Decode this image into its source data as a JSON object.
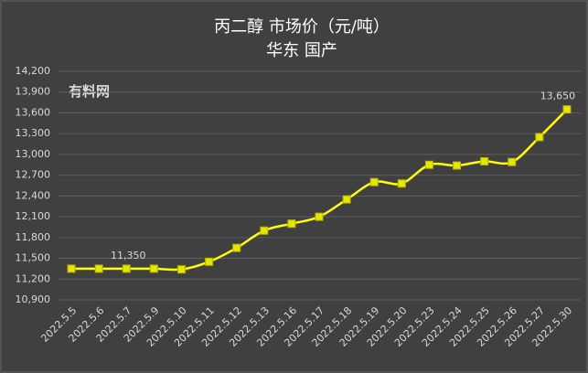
{
  "chart_data": {
    "type": "line",
    "title": "丙二醇  市场价（元/吨）",
    "subtitle": "华东    国产",
    "watermark": "有料网",
    "categories": [
      "2022.5.5",
      "2022.5.6",
      "2022.5.7",
      "2022.5.9",
      "2022.5.10",
      "2022.5.11",
      "2022.5.12",
      "2022.5.13",
      "2022.5.16",
      "2022.5.17",
      "2022.5.18",
      "2022.5.19",
      "2022.5.20",
      "2022.5.23",
      "2022.5.24",
      "2022.5.25",
      "2022.5.26",
      "2022.5.27",
      "2022.5.30"
    ],
    "values": [
      11350,
      11350,
      11350,
      11350,
      11340,
      11450,
      11650,
      11900,
      12000,
      12100,
      12350,
      12600,
      12580,
      12850,
      12840,
      12900,
      12890,
      13250,
      13650
    ],
    "value_labels": [
      null,
      null,
      "11,350",
      null,
      null,
      null,
      null,
      null,
      null,
      null,
      null,
      null,
      null,
      null,
      null,
      null,
      null,
      null,
      "13,650"
    ],
    "color": "#ffff00",
    "ylim": [
      10900,
      14200
    ],
    "yticks": [
      {
        "value": 10900,
        "label": "10,900"
      },
      {
        "value": 11200,
        "label": "11,200"
      },
      {
        "value": 11500,
        "label": "11,500"
      },
      {
        "value": 11800,
        "label": "11,800"
      },
      {
        "value": 12100,
        "label": "12,100"
      },
      {
        "value": 12400,
        "label": "12,400"
      },
      {
        "value": 12700,
        "label": "12,700"
      },
      {
        "value": 13000,
        "label": "13,000"
      },
      {
        "value": 13300,
        "label": "13,300"
      },
      {
        "value": 13600,
        "label": "13,600"
      },
      {
        "value": 13900,
        "label": "13,900"
      },
      {
        "value": 14200,
        "label": "14,200"
      }
    ],
    "grid": true
  }
}
